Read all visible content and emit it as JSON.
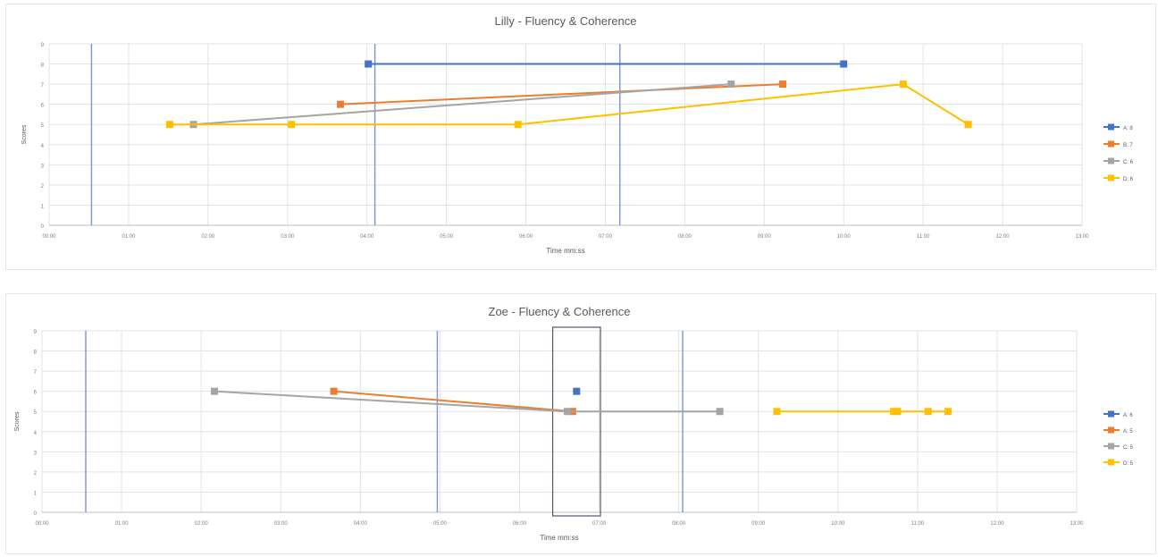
{
  "chart_data": [
    {
      "type": "line",
      "title": "Lilly - Fluency & Coherence",
      "xlabel": "Time mm:ss",
      "ylabel": "Scores",
      "xlim": [
        0,
        780
      ],
      "ylim": [
        0,
        9
      ],
      "x_ticks": [
        "00:00",
        "01:00",
        "02:00",
        "03:00",
        "04:00",
        "05:00",
        "06:00",
        "07:00",
        "08:00",
        "09:00",
        "10:00",
        "11:00",
        "12:00",
        "13:00"
      ],
      "y_ticks": [
        "0",
        "1",
        "2",
        "3",
        "4",
        "5",
        "6",
        "7",
        "8",
        "9"
      ],
      "grid": true,
      "legend": "right",
      "vertical_markers": [
        32,
        246,
        431
      ],
      "series": [
        {
          "name": "A: 8",
          "color": "#4472C4",
          "x": [
            241,
            600
          ],
          "y": [
            8,
            8
          ]
        },
        {
          "name": "B: 7",
          "color": "#ED7D31",
          "x": [
            220,
            554
          ],
          "y": [
            6,
            7
          ]
        },
        {
          "name": "C: 6",
          "color": "#A5A5A5",
          "x": [
            109,
            515
          ],
          "y": [
            5,
            7
          ]
        },
        {
          "name": "D: 6",
          "color": "#FFC000",
          "x": [
            91,
            183,
            354,
            645,
            694
          ],
          "y": [
            5,
            5,
            5,
            7,
            5
          ]
        }
      ]
    },
    {
      "type": "line",
      "title": "Zoe - Fluency & Coherence",
      "xlabel": "Time mm:ss",
      "ylabel": "Scores",
      "xlim": [
        0,
        780
      ],
      "ylim": [
        0,
        9
      ],
      "x_ticks": [
        "00:00",
        "01:00",
        "02:00",
        "03:00",
        "04:00",
        "05:00",
        "06:00",
        "07:00",
        "08:00",
        "09:00",
        "10:00",
        "11:00",
        "12:00",
        "13:00"
      ],
      "y_ticks": [
        "0",
        "1",
        "2",
        "3",
        "4",
        "5",
        "6",
        "7",
        "8",
        "9"
      ],
      "grid": true,
      "legend": "right",
      "vertical_markers": [
        33,
        298,
        483
      ],
      "highlight_range": [
        385,
        421
      ],
      "series": [
        {
          "name": "A: 6",
          "color": "#4472C4",
          "x": [
            403
          ],
          "y": [
            6
          ]
        },
        {
          "name": "A: 5",
          "color": "#ED7D31",
          "x": [
            220,
            400
          ],
          "y": [
            6,
            5
          ]
        },
        {
          "name": "C: 5",
          "color": "#A5A5A5",
          "x": [
            130,
            396,
            511
          ],
          "y": [
            6,
            5,
            5
          ]
        },
        {
          "name": "D: 5",
          "color": "#FFC000",
          "x": [
            554,
            642,
            645,
            668,
            683
          ],
          "y": [
            5,
            5,
            5,
            5,
            5
          ]
        }
      ]
    }
  ]
}
